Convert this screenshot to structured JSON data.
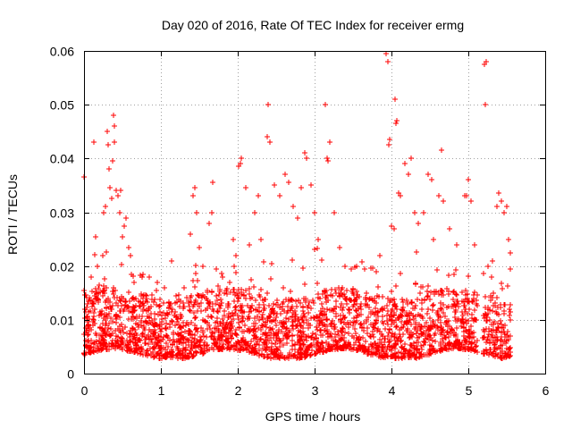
{
  "chart_data": {
    "type": "scatter",
    "title": "Day 020 of 2016, Rate Of TEC Index for receiver ermg",
    "xlabel": "GPS time / hours",
    "ylabel": "ROTI / TECUs",
    "xlim": [
      0,
      6
    ],
    "ylim": [
      0,
      0.06
    ],
    "grid": true,
    "marker": "+",
    "series_color": "#ff0000",
    "x_ticks": [
      {
        "value": 0,
        "label": "0"
      },
      {
        "value": 1,
        "label": "1"
      },
      {
        "value": 2,
        "label": "2"
      },
      {
        "value": 3,
        "label": "3"
      },
      {
        "value": 4,
        "label": "4"
      },
      {
        "value": 5,
        "label": "5"
      },
      {
        "value": 6,
        "label": "6"
      }
    ],
    "y_ticks": [
      {
        "value": 0,
        "label": "0"
      },
      {
        "value": 0.01,
        "label": "0.01"
      },
      {
        "value": 0.02,
        "label": "0.02"
      },
      {
        "value": 0.03,
        "label": "0.03"
      },
      {
        "value": 0.04,
        "label": "0.04"
      },
      {
        "value": 0.05,
        "label": "0.05"
      },
      {
        "value": 0.06,
        "label": "0.06"
      }
    ],
    "series": [
      {
        "name": "ROTI",
        "note": "Dense band of points between 0.004 and 0.015 TECU over 0-5.55 h; representative outliers listed in points",
        "points": [
          [
            0.0,
            0.0365
          ],
          [
            0.0,
            0.0155
          ],
          [
            0.01,
            0.012
          ],
          [
            0.02,
            0.0085
          ],
          [
            0.02,
            0.0062
          ],
          [
            0.13,
            0.043
          ],
          [
            0.15,
            0.0255
          ],
          [
            0.18,
            0.02
          ],
          [
            0.2,
            0.0165
          ],
          [
            0.24,
            0.022
          ],
          [
            0.26,
            0.03
          ],
          [
            0.28,
            0.031
          ],
          [
            0.3,
            0.045
          ],
          [
            0.31,
            0.0425
          ],
          [
            0.33,
            0.038
          ],
          [
            0.34,
            0.0345
          ],
          [
            0.36,
            0.0325
          ],
          [
            0.37,
            0.0395
          ],
          [
            0.38,
            0.048
          ],
          [
            0.39,
            0.046
          ],
          [
            0.4,
            0.043
          ],
          [
            0.42,
            0.034
          ],
          [
            0.44,
            0.033
          ],
          [
            0.46,
            0.03
          ],
          [
            0.48,
            0.034
          ],
          [
            0.5,
            0.0255
          ],
          [
            0.52,
            0.0275
          ],
          [
            0.55,
            0.029
          ],
          [
            0.58,
            0.0235
          ],
          [
            0.6,
            0.022
          ],
          [
            0.62,
            0.0185
          ],
          [
            0.65,
            0.017
          ],
          [
            0.75,
            0.018
          ],
          [
            0.85,
            0.018
          ],
          [
            0.95,
            0.017
          ],
          [
            1.05,
            0.016
          ],
          [
            1.2,
            0.0145
          ],
          [
            1.3,
            0.016
          ],
          [
            1.38,
            0.026
          ],
          [
            1.42,
            0.033
          ],
          [
            1.44,
            0.0345
          ],
          [
            1.46,
            0.03
          ],
          [
            1.5,
            0.0235
          ],
          [
            1.55,
            0.02
          ],
          [
            1.63,
            0.028
          ],
          [
            1.66,
            0.03
          ],
          [
            1.68,
            0.0355
          ],
          [
            1.72,
            0.0195
          ],
          [
            1.8,
            0.018
          ],
          [
            1.9,
            0.017
          ],
          [
            1.95,
            0.02
          ],
          [
            1.98,
            0.022
          ],
          [
            2.01,
            0.0385
          ],
          [
            2.03,
            0.039
          ],
          [
            2.05,
            0.04
          ],
          [
            2.1,
            0.0345
          ],
          [
            2.15,
            0.024
          ],
          [
            2.22,
            0.03
          ],
          [
            2.27,
            0.033
          ],
          [
            2.3,
            0.025
          ],
          [
            2.38,
            0.044
          ],
          [
            2.4,
            0.05
          ],
          [
            2.42,
            0.043
          ],
          [
            2.48,
            0.035
          ],
          [
            2.55,
            0.033
          ],
          [
            2.62,
            0.037
          ],
          [
            2.66,
            0.0355
          ],
          [
            2.72,
            0.031
          ],
          [
            2.78,
            0.029
          ],
          [
            2.83,
            0.0345
          ],
          [
            2.87,
            0.041
          ],
          [
            2.9,
            0.04
          ],
          [
            2.95,
            0.035
          ],
          [
            3.0,
            0.03
          ],
          [
            3.05,
            0.025
          ],
          [
            3.14,
            0.05
          ],
          [
            3.16,
            0.04
          ],
          [
            3.18,
            0.0395
          ],
          [
            3.2,
            0.043
          ],
          [
            3.25,
            0.03
          ],
          [
            3.32,
            0.0235
          ],
          [
            3.4,
            0.02
          ],
          [
            3.55,
            0.02
          ],
          [
            3.65,
            0.0195
          ],
          [
            3.8,
            0.019
          ],
          [
            3.93,
            0.0595
          ],
          [
            3.95,
            0.058
          ],
          [
            3.97,
            0.0425
          ],
          [
            3.98,
            0.0435
          ],
          [
            4.0,
            0.0275
          ],
          [
            4.03,
            0.027
          ],
          [
            4.05,
            0.051
          ],
          [
            4.06,
            0.0465
          ],
          [
            4.07,
            0.047
          ],
          [
            4.09,
            0.0335
          ],
          [
            4.12,
            0.033
          ],
          [
            4.18,
            0.039
          ],
          [
            4.22,
            0.037
          ],
          [
            4.25,
            0.04
          ],
          [
            4.3,
            0.03
          ],
          [
            4.35,
            0.028
          ],
          [
            4.42,
            0.03
          ],
          [
            4.48,
            0.037
          ],
          [
            4.52,
            0.036
          ],
          [
            4.55,
            0.025
          ],
          [
            4.62,
            0.033
          ],
          [
            4.65,
            0.0415
          ],
          [
            4.68,
            0.032
          ],
          [
            4.75,
            0.027
          ],
          [
            4.85,
            0.024
          ],
          [
            4.95,
            0.033
          ],
          [
            4.98,
            0.033
          ],
          [
            5.0,
            0.036
          ],
          [
            5.03,
            0.032
          ],
          [
            5.08,
            0.024
          ],
          [
            5.21,
            0.0575
          ],
          [
            5.22,
            0.05
          ],
          [
            5.23,
            0.058
          ],
          [
            5.25,
            0.02
          ],
          [
            5.3,
            0.018
          ],
          [
            5.37,
            0.031
          ],
          [
            5.4,
            0.0335
          ],
          [
            5.43,
            0.032
          ],
          [
            5.46,
            0.03
          ],
          [
            5.5,
            0.031
          ],
          [
            5.52,
            0.025
          ],
          [
            5.55,
            0.0225
          ]
        ]
      }
    ]
  }
}
